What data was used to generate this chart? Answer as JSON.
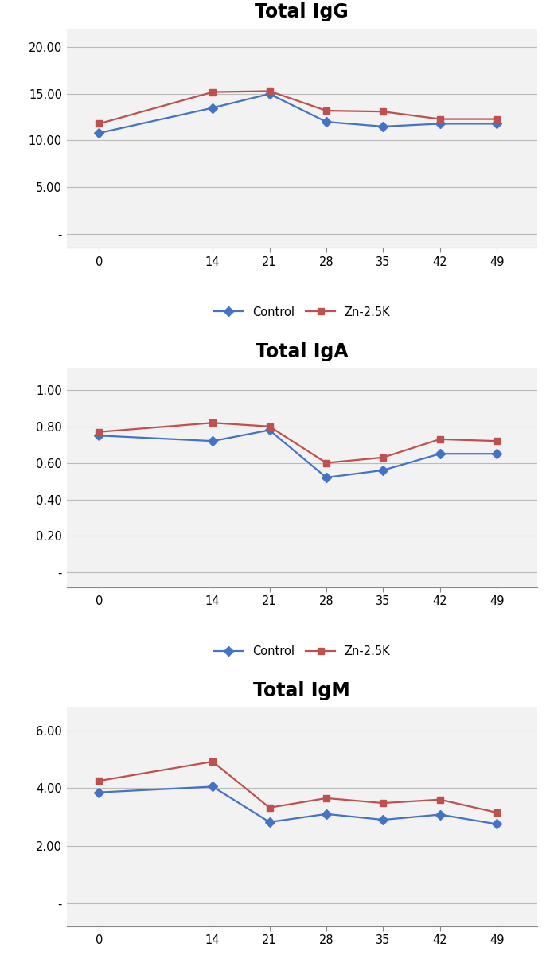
{
  "x": [
    0,
    14,
    21,
    28,
    35,
    42,
    49
  ],
  "igg_control": [
    10.8,
    13.5,
    15.0,
    12.0,
    11.5,
    11.8,
    11.8
  ],
  "igg_zn": [
    11.8,
    15.2,
    15.3,
    13.2,
    13.1,
    12.3,
    12.3
  ],
  "igg_title": "Total IgG",
  "igg_yticks": [
    0,
    5.0,
    10.0,
    15.0,
    20.0
  ],
  "igg_ylim": [
    -1.5,
    22.0
  ],
  "igg_ytick_labels": [
    "-",
    "5.00",
    "10.00",
    "15.00",
    "20.00"
  ],
  "iga_control": [
    0.75,
    0.72,
    0.78,
    0.52,
    0.56,
    0.65,
    0.65
  ],
  "iga_zn": [
    0.77,
    0.82,
    0.8,
    0.6,
    0.63,
    0.73,
    0.72
  ],
  "iga_title": "Total IgA",
  "iga_yticks": [
    0,
    0.2,
    0.4,
    0.6,
    0.8,
    1.0
  ],
  "iga_ylim": [
    -0.08,
    1.12
  ],
  "iga_ytick_labels": [
    "-",
    "0.20",
    "0.40",
    "0.60",
    "0.80",
    "1.00"
  ],
  "igm_control": [
    3.85,
    4.05,
    2.82,
    3.1,
    2.9,
    3.08,
    2.75
  ],
  "igm_zn": [
    4.25,
    4.92,
    3.32,
    3.65,
    3.48,
    3.6,
    3.15
  ],
  "igm_title": "Total IgM",
  "igm_yticks": [
    0,
    2.0,
    4.0,
    6.0
  ],
  "igm_ylim": [
    -0.8,
    6.8
  ],
  "igm_ytick_labels": [
    "-",
    "2.00",
    "4.00",
    "6.00"
  ],
  "control_color": "#4472C4",
  "zn_color": "#C0504D",
  "control_label": "Control",
  "zn_label": "Zn-2.5K",
  "xticks": [
    0,
    14,
    21,
    28,
    35,
    42,
    49
  ],
  "title_fontsize": 17,
  "tick_fontsize": 10.5,
  "legend_fontsize": 10.5,
  "bg_color": "#F2F2F2"
}
